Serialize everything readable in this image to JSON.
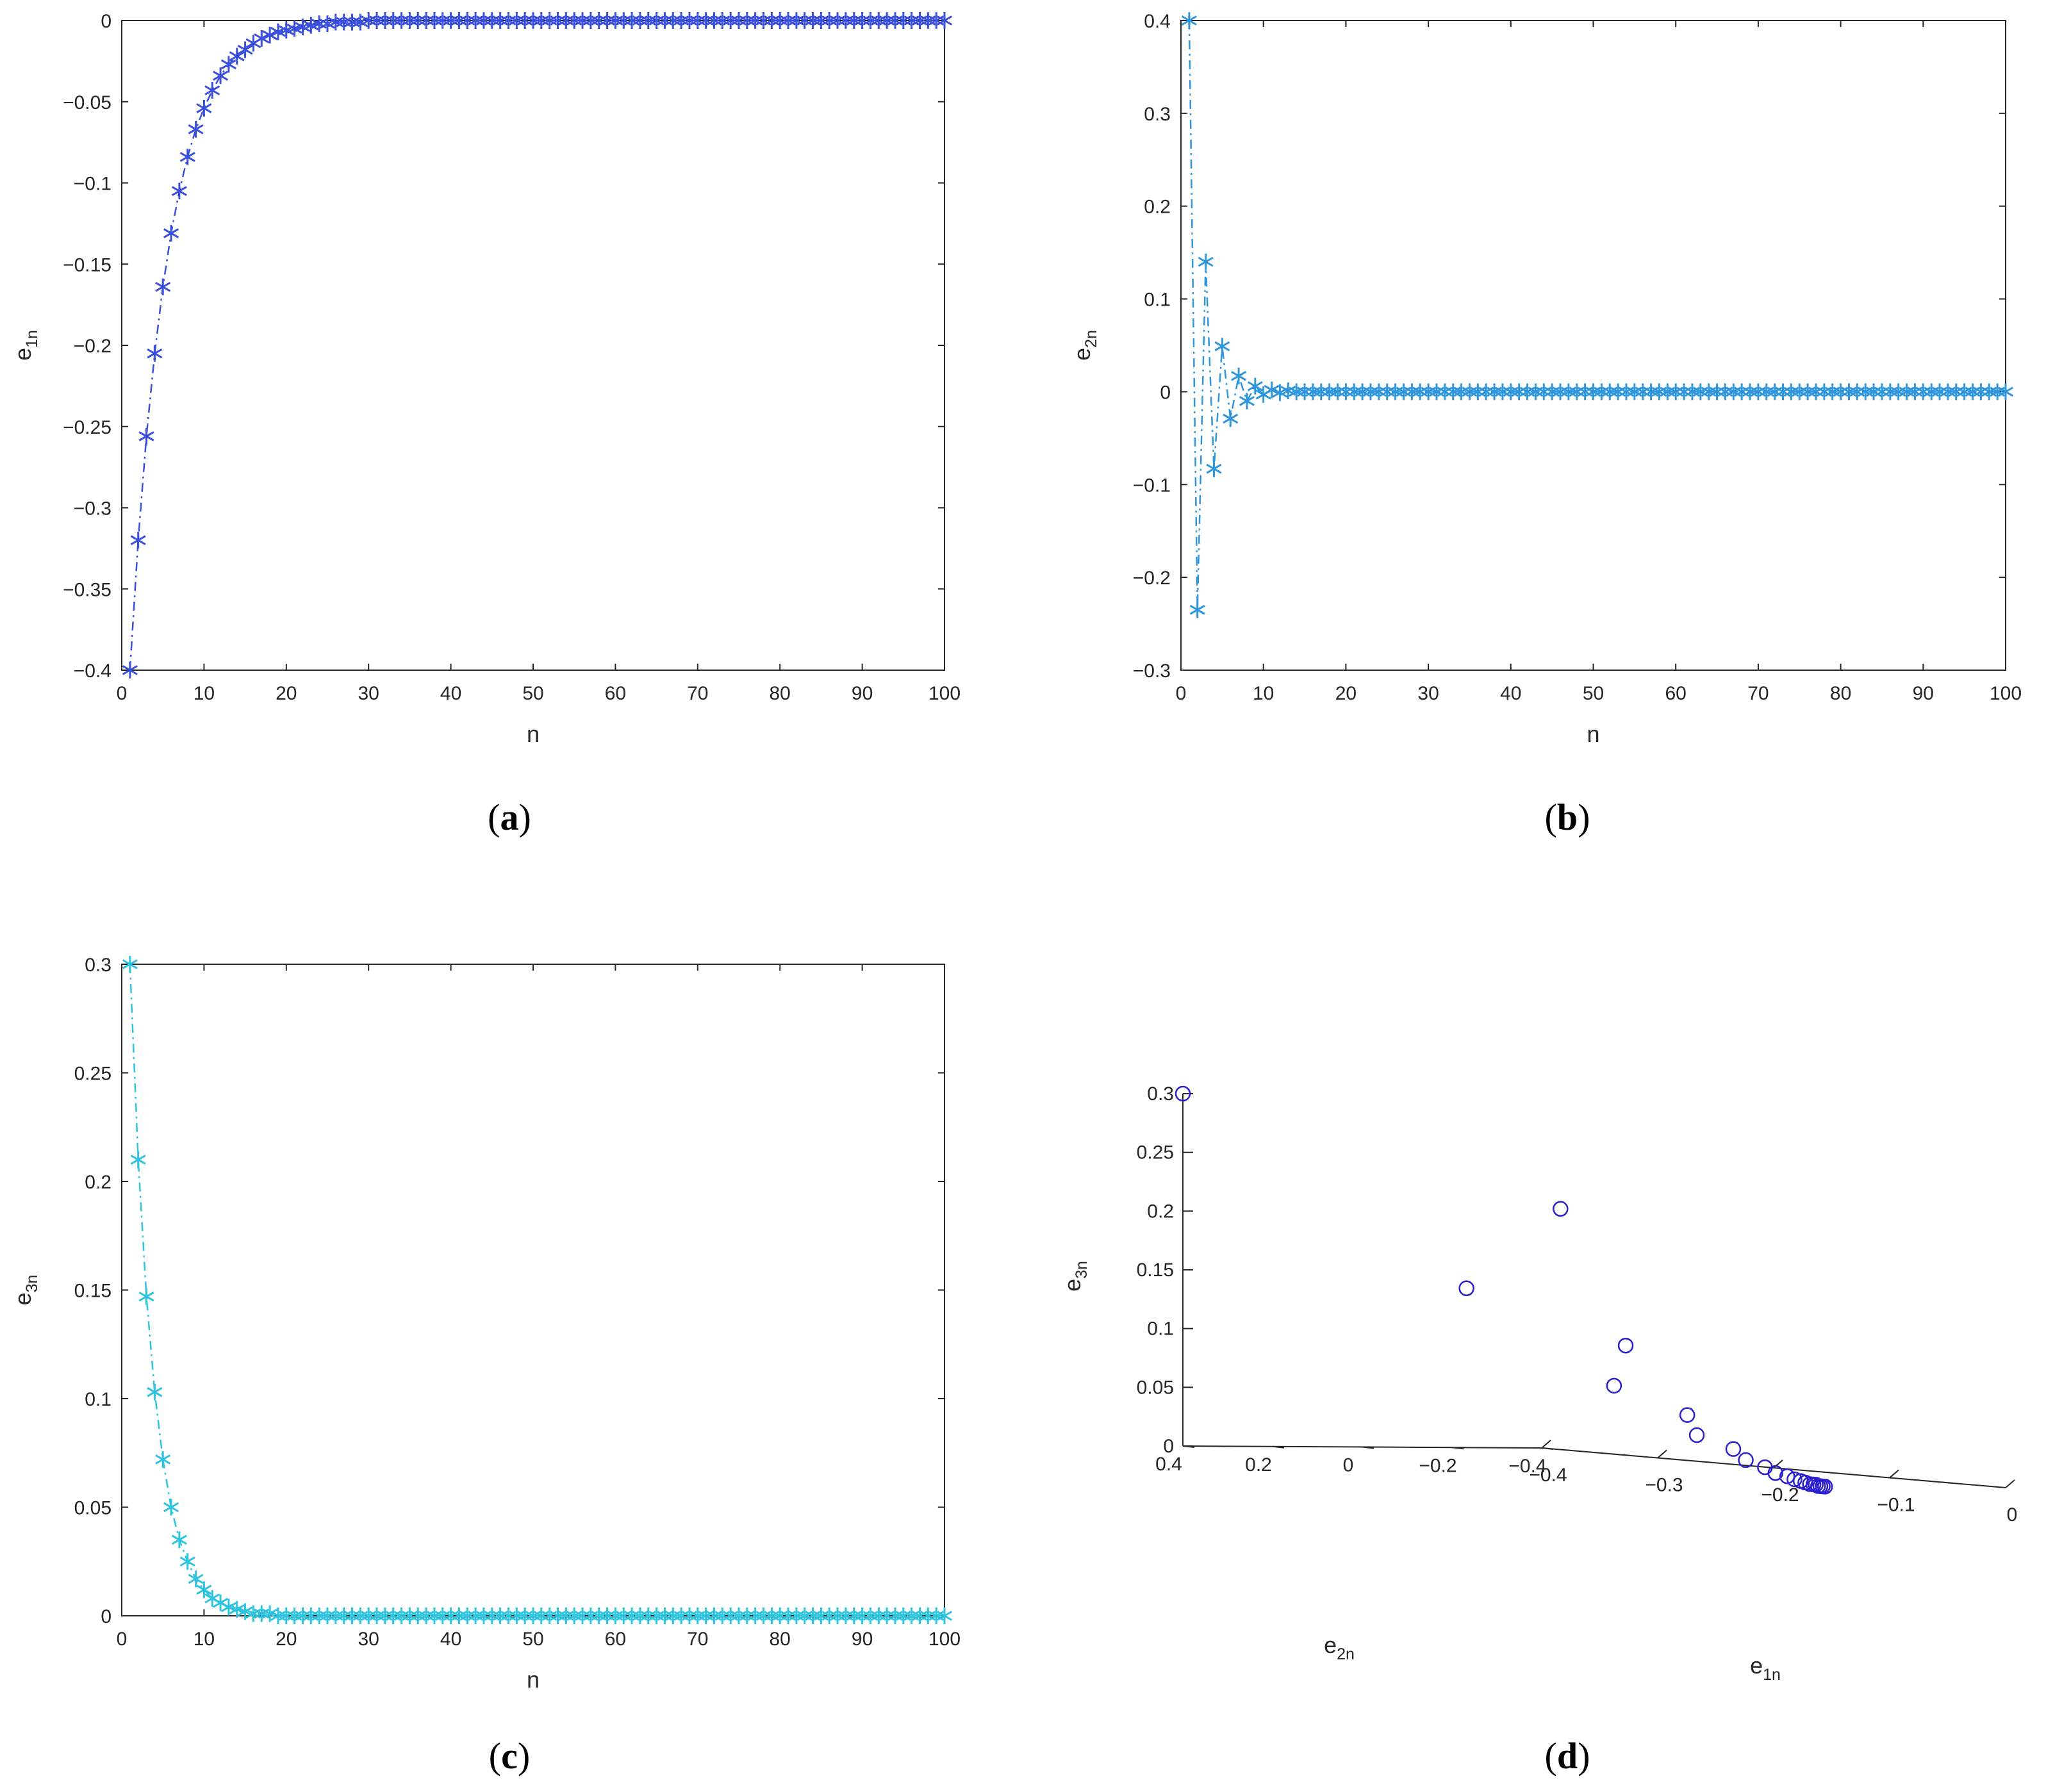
{
  "captions": {
    "a": {
      "open": "(",
      "letter": "a",
      "close": ")"
    },
    "b": {
      "open": "(",
      "letter": "b",
      "close": ")"
    },
    "c": {
      "open": "(",
      "letter": "c",
      "close": ")"
    },
    "d": {
      "open": "(",
      "letter": "d",
      "close": ")"
    }
  },
  "chart_data": [
    {
      "id": "a",
      "type": "line",
      "marker": "asterisk",
      "line_style": "dash-dot",
      "color": "#3a4fdc",
      "xlabel": "n",
      "ylabel": {
        "base": "e",
        "sub": "1n"
      },
      "xlim": [
        0,
        100
      ],
      "ylim": [
        -0.4,
        0
      ],
      "xticks": [
        0,
        10,
        20,
        30,
        40,
        50,
        60,
        70,
        80,
        90,
        100
      ],
      "yticks": [
        -0.4,
        -0.35,
        -0.3,
        -0.25,
        -0.2,
        -0.15,
        -0.1,
        -0.05,
        0
      ],
      "ytick_labels": [
        "-0.4",
        "-0.35",
        "-0.3",
        "-0.25",
        "-0.2",
        "-0.15",
        "-0.1",
        "-0.05",
        "0"
      ],
      "series": [
        {
          "x_start": 1,
          "x_end": 100,
          "values": [
            -0.4,
            -0.32,
            -0.256,
            -0.205,
            -0.164,
            -0.131,
            -0.105,
            -0.084,
            -0.067,
            -0.054,
            -0.043,
            -0.034,
            -0.027,
            -0.022,
            -0.018,
            -0.014,
            -0.011,
            -0.009,
            -0.007,
            -0.006,
            -0.005,
            -0.004,
            -0.003,
            -0.002,
            -0.002,
            -0.001,
            -0.001,
            -0.001,
            -0.001,
            0
          ],
          "tail_value": 0
        }
      ]
    },
    {
      "id": "b",
      "type": "line",
      "marker": "asterisk",
      "line_style": "dash-dot",
      "color": "#2f96dc",
      "xlabel": "n",
      "ylabel": {
        "base": "e",
        "sub": "2n"
      },
      "xlim": [
        0,
        100
      ],
      "ylim": [
        -0.3,
        0.4
      ],
      "xticks": [
        0,
        10,
        20,
        30,
        40,
        50,
        60,
        70,
        80,
        90,
        100
      ],
      "yticks": [
        -0.3,
        -0.2,
        -0.1,
        0,
        0.1,
        0.2,
        0.3,
        0.4
      ],
      "ytick_labels": [
        "-0.3",
        "-0.2",
        "-0.1",
        "0",
        "0.1",
        "0.2",
        "0.3",
        "0.4"
      ],
      "series": [
        {
          "x_start": 1,
          "x_end": 100,
          "values": [
            0.4,
            -0.235,
            0.14,
            -0.083,
            0.049,
            -0.029,
            0.017,
            -0.01,
            0.006,
            -0.003,
            0.002,
            -0.001,
            0.001,
            0
          ],
          "tail_value": 0
        }
      ]
    },
    {
      "id": "c",
      "type": "line",
      "marker": "asterisk",
      "line_style": "dash-dot",
      "color": "#2ec4de",
      "xlabel": "n",
      "ylabel": {
        "base": "e",
        "sub": "3n"
      },
      "xlim": [
        0,
        100
      ],
      "ylim": [
        0,
        0.3
      ],
      "xticks": [
        0,
        10,
        20,
        30,
        40,
        50,
        60,
        70,
        80,
        90,
        100
      ],
      "yticks": [
        0,
        0.05,
        0.1,
        0.15,
        0.2,
        0.25,
        0.3
      ],
      "ytick_labels": [
        "0",
        "0.05",
        "0.1",
        "0.15",
        "0.2",
        "0.25",
        "0.3"
      ],
      "series": [
        {
          "x_start": 1,
          "x_end": 100,
          "values": [
            0.3,
            0.21,
            0.147,
            0.103,
            0.072,
            0.05,
            0.035,
            0.025,
            0.017,
            0.012,
            0.008,
            0.006,
            0.004,
            0.003,
            0.002,
            0.001,
            0.001,
            0.001,
            0
          ],
          "tail_value": 0
        }
      ]
    },
    {
      "id": "d",
      "type": "scatter3d",
      "marker": "circle",
      "color": "#2a1fd0",
      "xlabel": {
        "base": "e",
        "sub": "1n"
      },
      "ylabel": {
        "base": "e",
        "sub": "2n"
      },
      "zlabel": {
        "base": "e",
        "sub": "3n"
      },
      "xlim": [
        -0.4,
        0
      ],
      "ylim": [
        -0.4,
        0.4
      ],
      "zlim": [
        0,
        0.3
      ],
      "xticks": [
        -0.4,
        -0.3,
        -0.2,
        -0.1,
        0
      ],
      "xtick_labels": [
        "-0.4",
        "-0.3",
        "-0.2",
        "-0.1",
        "0"
      ],
      "yticks": [
        -0.4,
        -0.2,
        0,
        0.2,
        0.4
      ],
      "ytick_labels": [
        "-0.4",
        "-0.2",
        "0",
        "0.2",
        "0.4"
      ],
      "zticks": [
        0,
        0.05,
        0.1,
        0.15,
        0.2,
        0.25,
        0.3
      ],
      "ztick_labels": [
        "0",
        "0.05",
        "0.1",
        "0.15",
        "0.2",
        "0.25",
        "0.3"
      ],
      "points": [
        [
          -0.4,
          0.4,
          0.3
        ],
        [
          -0.32,
          -0.235,
          0.21
        ],
        [
          -0.256,
          0.14,
          0.147
        ],
        [
          -0.205,
          -0.083,
          0.103
        ],
        [
          -0.164,
          0.049,
          0.072
        ],
        [
          -0.131,
          -0.029,
          0.05
        ],
        [
          -0.105,
          0.017,
          0.035
        ],
        [
          -0.084,
          -0.01,
          0.025
        ],
        [
          -0.067,
          0.006,
          0.017
        ],
        [
          -0.054,
          -0.003,
          0.012
        ],
        [
          -0.043,
          0.002,
          0.008
        ],
        [
          -0.034,
          -0.001,
          0.006
        ],
        [
          -0.027,
          0.001,
          0.004
        ],
        [
          -0.022,
          0,
          0.003
        ],
        [
          -0.018,
          0,
          0.002
        ],
        [
          -0.014,
          0,
          0.001
        ],
        [
          -0.011,
          0,
          0.001
        ],
        [
          -0.009,
          0,
          0.001
        ],
        [
          -0.007,
          0,
          0
        ],
        [
          -0.005,
          0,
          0
        ],
        [
          -0.003,
          0,
          0
        ],
        [
          -0.001,
          0,
          0
        ]
      ]
    }
  ]
}
